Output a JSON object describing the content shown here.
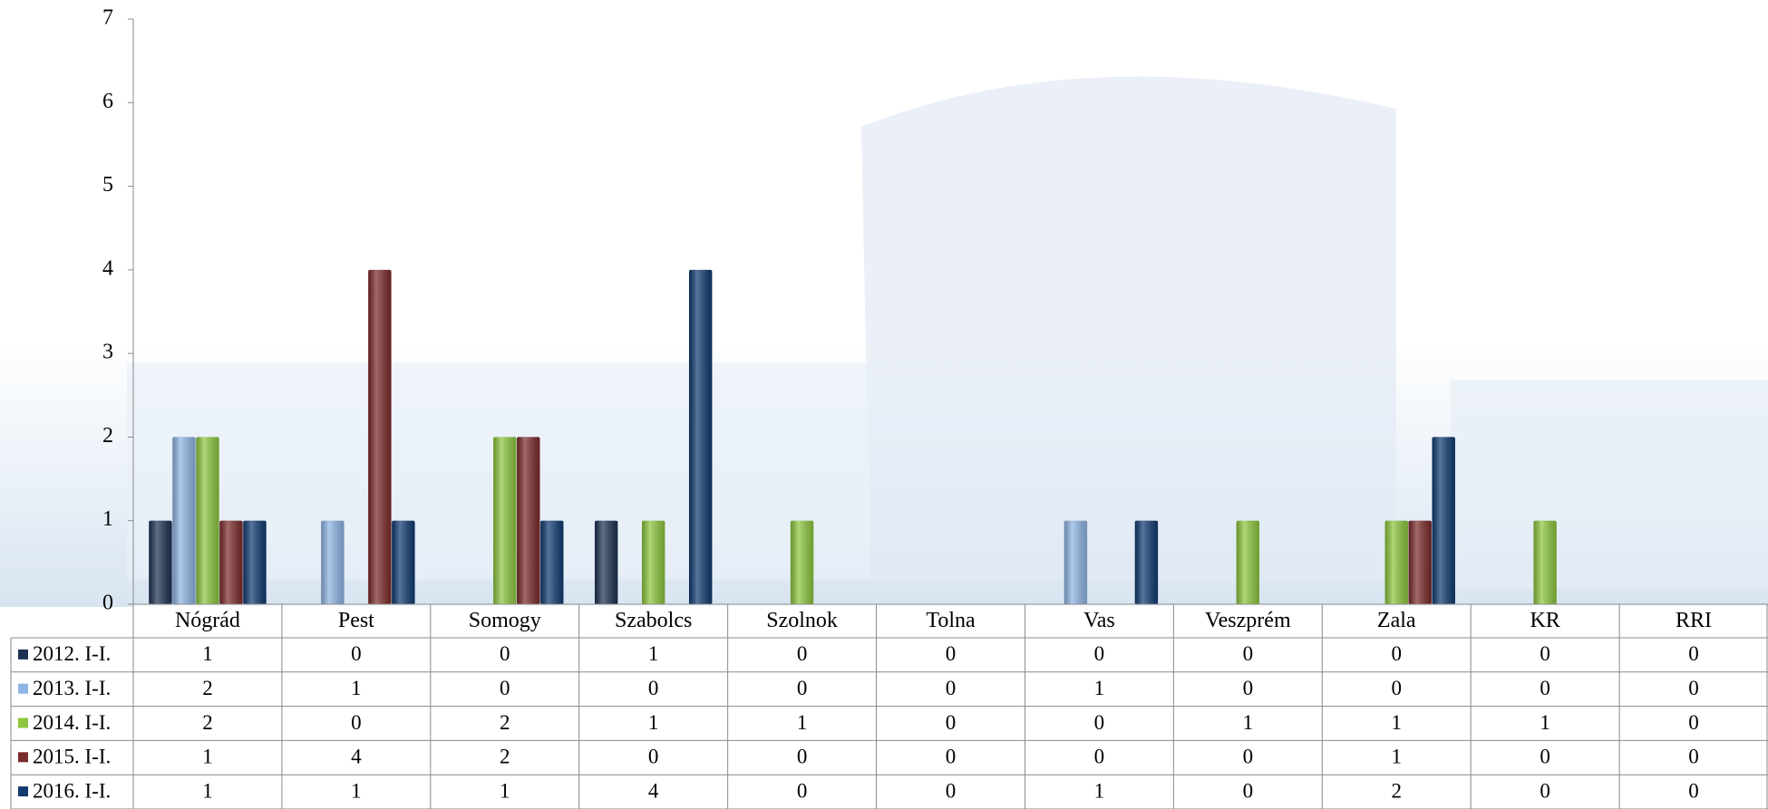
{
  "chart_data": {
    "type": "bar",
    "categories": [
      "Nógrád",
      "Pest",
      "Somogy",
      "Szabolcs",
      "Szolnok",
      "Tolna",
      "Vas",
      "Veszprém",
      "Zala",
      "KR",
      "RRI"
    ],
    "series": [
      {
        "name": "2012. I-I.",
        "color": "#1d3152",
        "values": [
          1,
          0,
          0,
          1,
          0,
          0,
          0,
          0,
          0,
          0,
          0
        ]
      },
      {
        "name": "2013. I-I.",
        "color": "#8eb4e3",
        "values": [
          2,
          1,
          0,
          0,
          0,
          0,
          1,
          0,
          0,
          0,
          0
        ]
      },
      {
        "name": "2014. I-I.",
        "color": "#8cc63e",
        "values": [
          2,
          0,
          2,
          1,
          1,
          0,
          0,
          1,
          1,
          1,
          0
        ]
      },
      {
        "name": "2015. I-I.",
        "color": "#7a2a2a",
        "values": [
          1,
          4,
          2,
          0,
          0,
          0,
          0,
          0,
          1,
          0,
          0
        ]
      },
      {
        "name": "2016. I-I.",
        "color": "#103a70",
        "values": [
          1,
          1,
          1,
          4,
          0,
          0,
          1,
          0,
          2,
          0,
          0
        ]
      }
    ],
    "ylim": [
      0,
      7
    ],
    "yticks": [
      0,
      1,
      2,
      3,
      4,
      5,
      6,
      7
    ],
    "legend": "table"
  }
}
